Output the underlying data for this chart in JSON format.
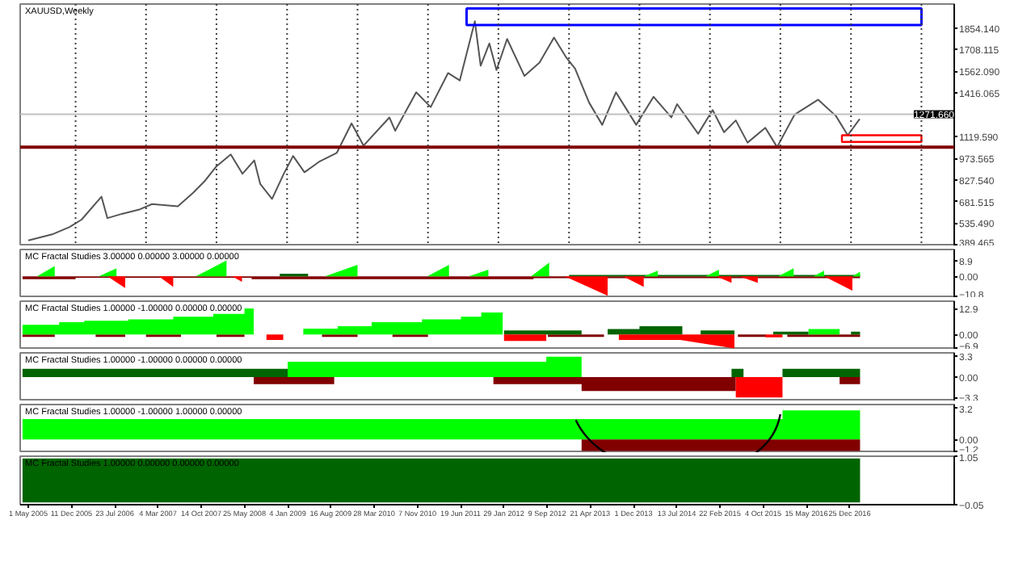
{
  "chart_data": [
    {
      "type": "line",
      "title": "XAUUSD,Weekly",
      "xlim": [
        "2005-03-20",
        "2018-06-20"
      ],
      "ylim": [
        380,
        2016
      ],
      "tick_labels": "y",
      "yticks": [
        389.465,
        {
          "value": 535.49,
          "label": "535.490"
        },
        681.515,
        {
          "value": 827.54,
          "label": "827.540"
        },
        973.565,
        {
          "value": 1119.59,
          "label": "1119.590"
        },
        1416.065,
        {
          "value": 1562.09,
          "label": "1562.090"
        },
        1708.115,
        {
          "value": 1854.14,
          "label": "1854.140"
        }
      ],
      "ref_lines": [
        {
          "axis": "y",
          "value": 1271.66,
          "label": "1271.660",
          "color": "#c0c0c0"
        },
        {
          "axis": "y",
          "value": 1050,
          "color": "#800000"
        },
        {
          "axis": "x",
          "value": "2006-01-01",
          "line_style": "dotted",
          "color": "#404040"
        },
        {
          "axis": "x",
          "value": "2007-01-01",
          "line_style": "dotted",
          "color": "#404040"
        },
        {
          "axis": "x",
          "value": "2008-01-01",
          "line_style": "dotted",
          "color": "#404040"
        },
        {
          "axis": "x",
          "value": "2009-01-01",
          "line_style": "dotted",
          "color": "#404040"
        },
        {
          "axis": "x",
          "value": "2010-01-01",
          "line_style": "dotted",
          "color": "#404040"
        },
        {
          "axis": "x",
          "value": "2011-01-01",
          "line_style": "dotted",
          "color": "#404040"
        },
        {
          "axis": "x",
          "value": "2012-01-01",
          "line_style": "dotted",
          "color": "#404040"
        },
        {
          "axis": "x",
          "value": "2013-01-01",
          "line_style": "dotted",
          "color": "#404040"
        },
        {
          "axis": "x",
          "value": "2014-01-01",
          "line_style": "dotted",
          "color": "#404040"
        },
        {
          "axis": "x",
          "value": "2015-01-01",
          "line_style": "dotted",
          "color": "#404040"
        },
        {
          "axis": "x",
          "value": "2016-01-01",
          "line_style": "dotted",
          "color": "#404040"
        },
        {
          "axis": "x",
          "value": "2017-01-01",
          "line_style": "dotted",
          "color": "#404040"
        },
        {
          "axis": "x",
          "value": "2018-01-01",
          "line_style": "dotted",
          "color": "#404040"
        }
      ],
      "series": [
        {
          "color": "#555555",
          "x": [
            "2005-05-01",
            "2005-09-01",
            "2005-12-01",
            "2006-02-01",
            "2006-05-15",
            "2006-06-15",
            "2006-09-01",
            "2006-12-01",
            "2007-02-01",
            "2007-06-15",
            "2007-09-01",
            "2007-11-01",
            "2008-01-01",
            "2008-03-15",
            "2008-05-15",
            "2008-07-15",
            "2008-08-15",
            "2008-10-15",
            "2008-12-15",
            "2009-02-01",
            "2009-04-01",
            "2009-06-15",
            "2009-09-15",
            "2009-12-01",
            "2010-02-01",
            "2010-06-15",
            "2010-07-15",
            "2010-11-01",
            "2011-01-15",
            "2011-04-15",
            "2011-06-15",
            "2011-09-01",
            "2011-10-01",
            "2011-11-15",
            "2011-12-22",
            "2012-02-15",
            "2012-05-15",
            "2012-08-01",
            "2012-10-15",
            "2012-12-15",
            "2013-02-01",
            "2013-04-15",
            "2013-06-22",
            "2013-09-01",
            "2013-12-15",
            "2014-03-15",
            "2014-06-15",
            "2014-07-15",
            "2014-11-01",
            "2015-01-15",
            "2015-03-15",
            "2015-05-15",
            "2015-07-15",
            "2015-10-15",
            "2015-12-15",
            "2016-03-15",
            "2016-07-15",
            "2016-10-15",
            "2016-12-15",
            "2017-02-15"
          ],
          "values": [
            420,
            460,
            510,
            560,
            715,
            570,
            600,
            630,
            665,
            650,
            740,
            820,
            920,
            1000,
            870,
            960,
            800,
            700,
            870,
            990,
            880,
            950,
            1010,
            1210,
            1060,
            1250,
            1160,
            1420,
            1320,
            1550,
            1500,
            1900,
            1600,
            1750,
            1570,
            1780,
            1530,
            1620,
            1790,
            1660,
            1580,
            1350,
            1200,
            1420,
            1200,
            1390,
            1250,
            1340,
            1140,
            1300,
            1150,
            1230,
            1080,
            1180,
            1050,
            1270,
            1370,
            1260,
            1130,
            1240
          ]
        }
      ]
    },
    {
      "type": "area",
      "title": "MC Fractal Studies 3.00000 0.00000 3.00000 0.00000",
      "xlim": [
        "2005-03-20",
        "2018-06-20"
      ],
      "ylim": [
        -12,
        15
      ],
      "tick_labels": "y",
      "yticks": [
        8.9,
        {
          "value": 0,
          "label": "0.00"
        },
        -10.8
      ],
      "series": [
        {
          "color": "#800000",
          "x": [
            "2005-04-01",
            "2005-04-01",
            "2006-01-01",
            "2006-01-01",
            "2008-07-01",
            "2008-07-01",
            "2012-07-01",
            "2012-07-01",
            "2017-02-17",
            "2017-02-17"
          ],
          "values": [
            0,
            -1.5,
            -1.5,
            -0.8,
            -0.8,
            -1.5,
            -1.5,
            -1.0,
            -1.0,
            0
          ]
        },
        {
          "color": "#006400",
          "x": [
            "2008-11-24",
            "2008-11-24",
            "2009-04-20",
            "2009-04-20",
            "2013-01-01",
            "2013-01-01",
            "2017-02-17",
            "2017-02-17"
          ],
          "values": [
            0,
            1.5,
            1.5,
            0,
            0,
            0.8,
            0.8,
            0
          ]
        },
        {
          "color": "#00ff00",
          "x": [
            "2005-06-15",
            "2005-09-15",
            "2005-09-15",
            "2006-05-01",
            "2006-08-01",
            "2006-08-01",
            "2007-09-15",
            "2008-02-22",
            "2008-02-22",
            "2009-07-16",
            "2010-01-01",
            "2010-01-01",
            "2010-12-28",
            "2011-04-20",
            "2011-04-20",
            "2011-07-31",
            "2011-11-10",
            "2011-11-10",
            "2012-06-18",
            "2012-09-20",
            "2012-09-20",
            "2014-01-23",
            "2014-04-06",
            "2014-04-06",
            "2014-12-09",
            "2015-02-17",
            "2015-02-17",
            "2015-12-20",
            "2016-03-10",
            "2016-03-10",
            "2016-06-21",
            "2016-08-15",
            "2016-08-15",
            "2017-01-08",
            "2017-02-17",
            "2017-02-17"
          ],
          "values": [
            0,
            5.8,
            0,
            0,
            4.5,
            0,
            0,
            8.9,
            0,
            0,
            6.4,
            0,
            0,
            6.4,
            0,
            0,
            3.8,
            0,
            0,
            7.7,
            0,
            0,
            3.2,
            0,
            0,
            3.8,
            0,
            0,
            4.5,
            0,
            0,
            3.2,
            0,
            0,
            2.6,
            0
          ]
        },
        {
          "color": "#ff0000",
          "x": [
            "2006-06-15",
            "2006-09-15",
            "2006-09-15",
            "2007-03-08",
            "2007-05-22",
            "2007-05-22",
            "2008-03-22",
            "2008-05-12",
            "2008-05-12",
            "2012-12-10",
            "2013-07-20",
            "2013-07-20",
            "2013-10-08",
            "2014-01-23",
            "2014-01-23",
            "2015-02-03",
            "2015-04-23",
            "2015-04-23",
            "2015-06-03",
            "2015-09-06",
            "2015-09-06",
            "2016-08-15",
            "2017-01-08",
            "2017-01-08"
          ],
          "values": [
            0,
            -6.5,
            0,
            0,
            -5.8,
            0,
            0,
            -3.0,
            0,
            0,
            -10.8,
            0,
            0,
            -5.8,
            0,
            0,
            -3.6,
            0,
            0,
            -3.6,
            0,
            0,
            -7.9,
            0
          ]
        }
      ]
    },
    {
      "type": "area",
      "title": "MC Fractal Studies 1.00000 -1.00000 0.00000 0.00000",
      "xlim": [
        "2005-03-20",
        "2018-06-20"
      ],
      "ylim": [
        -7.5,
        16.5
      ],
      "tick_labels": "y",
      "yticks": [
        12.9,
        {
          "value": 0,
          "label": "0.00"
        },
        -6.9
      ],
      "series": [
        {
          "color": "#800000",
          "x": [
            "2005-04-01",
            "2005-04-01",
            "2005-09-15",
            "2005-09-15",
            "2006-04-15",
            "2006-04-15",
            "2006-09-15",
            "2006-09-15",
            "2007-01-01",
            "2007-01-01",
            "2007-07-01",
            "2007-07-01",
            "2008-01-01",
            "2008-01-01",
            "2008-05-25",
            "2008-05-25",
            "2009-07-01",
            "2009-07-01",
            "2010-01-01",
            "2010-01-01",
            "2010-07-01",
            "2010-07-01",
            "2011-01-01",
            "2011-01-01",
            "2012-09-13",
            "2012-09-13",
            "2013-07-01",
            "2013-07-01",
            "2015-05-26",
            "2015-05-26",
            "2015-10-20",
            "2015-10-20",
            "2016-02-06",
            "2016-02-06",
            "2017-02-17",
            "2017-02-17"
          ],
          "values": [
            0,
            -1.2,
            -1.2,
            0,
            0,
            -1.2,
            -1.2,
            0,
            0,
            -1.2,
            -1.2,
            0,
            0,
            -1.2,
            -1.2,
            0,
            0,
            -1.2,
            -1.2,
            0,
            0,
            -1.2,
            -1.2,
            0,
            0,
            -1.2,
            -1.2,
            0,
            0,
            -1.2,
            -1.2,
            0,
            0,
            -1.2,
            -1.2,
            0
          ]
        },
        {
          "color": "#006400",
          "x": [
            "2012-01-30",
            "2012-01-30",
            "2013-03-07",
            "2013-03-07",
            "2013-07-20",
            "2013-07-20",
            "2014-01-01",
            "2014-01-01",
            "2014-08-11",
            "2014-08-11",
            "2014-11-14",
            "2014-11-14",
            "2015-05-08",
            "2015-05-08",
            "2015-11-25",
            "2015-11-25",
            "2016-05-26",
            "2016-05-26",
            "2017-01-01",
            "2017-01-01",
            "2017-02-17",
            "2017-02-17"
          ],
          "values": [
            0,
            2.0,
            2.0,
            0,
            0,
            2.7,
            2.7,
            4.1,
            4.1,
            0,
            0,
            2.0,
            2.0,
            0,
            0,
            1.4,
            1.4,
            0,
            0,
            1.4,
            1.4,
            0
          ]
        },
        {
          "color": "#00ff00",
          "x": [
            "2005-04-01",
            "2005-10-08",
            "2005-10-08",
            "2006-02-15",
            "2006-02-15",
            "2006-10-01",
            "2006-10-01",
            "2007-05-22",
            "2007-05-22",
            "2007-12-15",
            "2007-12-15",
            "2008-05-25",
            "2008-05-25",
            "2008-07-12",
            "2008-07-12",
            "2009-03-26",
            "2009-03-26",
            "2009-09-20",
            "2009-09-20",
            "2010-03-15",
            "2010-03-15",
            "2010-12-01",
            "2010-12-01",
            "2011-06-21",
            "2011-06-21",
            "2011-10-04",
            "2011-10-04",
            "2012-01-23",
            "2012-01-23",
            "2016-05-26",
            "2016-05-26",
            "2016-11-03",
            "2016-11-03"
          ],
          "values": [
            4.8,
            4.8,
            6.1,
            6.1,
            6.8,
            6.8,
            7.5,
            7.5,
            8.8,
            8.8,
            10.2,
            10.2,
            12.9,
            12.9,
            0,
            0,
            2.9,
            2.9,
            4.1,
            4.1,
            6.1,
            6.1,
            7.5,
            7.5,
            8.8,
            8.8,
            10.9,
            10.9,
            0,
            0,
            2.7,
            2.7,
            0
          ]
        },
        {
          "color": "#ff0000",
          "x": [
            "2008-09-16",
            "2008-09-16",
            "2008-12-12",
            "2008-12-12",
            "2012-01-30",
            "2012-01-30",
            "2012-09-05",
            "2012-09-05",
            "2013-09-16",
            "2013-09-16",
            "2014-07-31",
            "2015-05-08",
            "2015-05-08",
            "2015-10-16",
            "2015-10-16",
            "2016-01-12",
            "2016-01-12"
          ],
          "values": [
            0,
            -2.7,
            -2.7,
            0,
            0,
            -3.2,
            -3.2,
            0,
            0,
            -2.7,
            -2.7,
            -6.9,
            0,
            0,
            -1.4,
            -1.4,
            0
          ]
        }
      ]
    },
    {
      "type": "area",
      "title": "MC Fractal Studies 1.00000 -1.00000 0.00000 0.00000",
      "xlim": [
        "2005-03-20",
        "2018-06-20"
      ],
      "ylim": [
        -3.8,
        3.8
      ],
      "tick_labels": "y",
      "yticks": [
        3.3,
        {
          "value": 0,
          "label": "0.00"
        },
        -3.3
      ],
      "series": [
        {
          "color": "#006400",
          "x": [
            "2005-04-01",
            "2009-01-04",
            "2009-01-04",
            "2015-04-23",
            "2015-04-23",
            "2015-06-24",
            "2015-06-24",
            "2016-01-12",
            "2016-01-12",
            "2017-02-17",
            "2017-02-17"
          ],
          "values": [
            1.3,
            1.3,
            0,
            0,
            1.3,
            1.3,
            0,
            0,
            1.3,
            1.3,
            0
          ]
        },
        {
          "color": "#00ff00",
          "x": [
            "2009-01-04",
            "2009-01-04",
            "2012-09-05",
            "2012-09-05",
            "2013-03-07",
            "2013-03-07"
          ],
          "values": [
            0,
            2.4,
            2.4,
            3.2,
            3.2,
            0
          ]
        },
        {
          "color": "#800000",
          "x": [
            "2008-07-12",
            "2008-07-12",
            "2009-09-02",
            "2009-09-02",
            "2011-12-06",
            "2011-12-06",
            "2013-03-07",
            "2013-03-07",
            "2015-05-15",
            "2015-05-15",
            "2016-11-03",
            "2016-11-03",
            "2017-02-17",
            "2017-02-17"
          ],
          "values": [
            0,
            -1.1,
            -1.1,
            0,
            0,
            -1.1,
            -1.1,
            -2.2,
            -2.2,
            0,
            0,
            -1.1,
            -1.1,
            0
          ]
        },
        {
          "color": "#ff0000",
          "x": [
            "2015-05-15",
            "2015-05-15",
            "2016-01-12",
            "2016-01-12"
          ],
          "values": [
            0,
            -3.2,
            -3.2,
            0
          ]
        }
      ]
    },
    {
      "type": "area",
      "title": "MC Fractal Studies 1.00000 -1.00000 1.00000 0.00000",
      "xlim": [
        "2005-03-20",
        "2018-06-20"
      ],
      "ylim": [
        -1.4,
        3.6
      ],
      "tick_labels": "y",
      "yticks": [
        3.2,
        {
          "value": 0,
          "label": "0.00"
        },
        -1.2
      ],
      "series": [
        {
          "color": "#00ff00",
          "x": [
            "2005-04-01",
            "2016-01-12",
            "2016-01-12",
            "2017-02-17",
            "2017-02-17"
          ],
          "values": [
            2.1,
            2.1,
            3.0,
            3.0,
            0
          ]
        },
        {
          "color": "#800000",
          "x": [
            "2013-03-07",
            "2013-03-07",
            "2017-02-17",
            "2017-02-17"
          ],
          "values": [
            0,
            -1.2,
            -1.2,
            0
          ]
        }
      ]
    },
    {
      "type": "area",
      "title": "MC Fractal Studies 1.00000 0.00000 0.00000 0.00000",
      "xlim": [
        "2005-03-20",
        "2018-06-20"
      ],
      "ylim": [
        -0.05,
        1.05
      ],
      "yticks": [
        1.05,
        -0.05
      ],
      "xticks": [
        {
          "value": "2005-05-01",
          "label": "1 May 2005"
        },
        {
          "value": "2005-12-11",
          "label": "11 Dec 2005"
        },
        {
          "value": "2006-07-23",
          "label": "23 Jul 2006"
        },
        {
          "value": "2007-03-04",
          "label": "4 Mar 2007"
        },
        {
          "value": "2007-10-14",
          "label": "14 Oct 2007"
        },
        {
          "value": "2008-05-25",
          "label": "25 May 2008"
        },
        {
          "value": "2009-01-04",
          "label": "4 Jan 2009"
        },
        {
          "value": "2009-08-16",
          "label": "16 Aug 2009"
        },
        {
          "value": "2010-03-28",
          "label": "28 Mar 2010"
        },
        {
          "value": "2010-11-07",
          "label": "7 Nov 2010"
        },
        {
          "value": "2011-06-19",
          "label": "19 Jun 2011"
        },
        {
          "value": "2012-01-29",
          "label": "29 Jan 2012"
        },
        {
          "value": "2012-09-09",
          "label": "9 Sep 2012"
        },
        {
          "value": "2013-04-21",
          "label": "21 Apr 2013"
        },
        {
          "value": "2013-12-01",
          "label": "1 Dec 2013"
        },
        {
          "value": "2014-07-13",
          "label": "13 Jul 2014"
        },
        {
          "value": "2015-02-22",
          "label": "22 Feb 2015"
        },
        {
          "value": "2015-10-04",
          "label": "4 Oct 2015"
        },
        {
          "value": "2016-05-15",
          "label": "15 May 2016"
        },
        {
          "value": "2016-12-25",
          "label": "25 Dec 2016"
        }
      ],
      "series": [
        {
          "color": "#006400",
          "x": [
            "2005-04-01",
            "2005-04-01",
            "2017-02-17",
            "2017-02-17"
          ],
          "values": [
            0,
            1.0,
            1.0,
            0
          ]
        }
      ]
    }
  ]
}
